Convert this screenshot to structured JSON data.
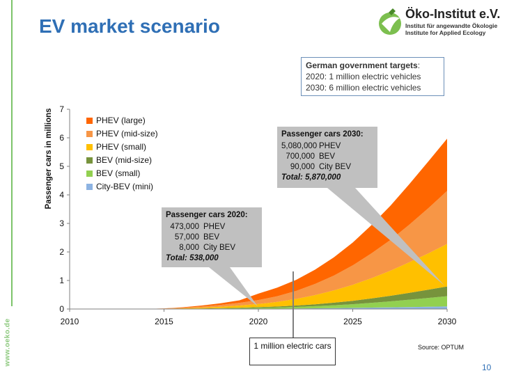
{
  "slide": {
    "title": "EV market scenario",
    "side_url": "www.oeko.de",
    "page_number": "10",
    "source": "Source: OPTUM",
    "logo": {
      "name": "Öko-Institut e.V.",
      "sub_de": "Institut für angewandte Ökologie",
      "sub_en": "Institute for Applied Ecology"
    },
    "targets": {
      "heading": "German government targets",
      "heading_suffix": ":",
      "line1": "2020: 1 million electric vehicles",
      "line2": "2030: 6 million electric vehicles"
    },
    "callout_2030": {
      "title": "Passenger cars 2030:",
      "rows": [
        {
          "num": "5,080,000",
          "label": "PHEV"
        },
        {
          "num": "700,000",
          "label": "BEV"
        },
        {
          "num": "90,000",
          "label": "City BEV"
        }
      ],
      "total": "Total: 5,870,000"
    },
    "callout_2020": {
      "title": "Passenger cars 2020:",
      "rows": [
        {
          "num": "473,000",
          "label": "PHEV"
        },
        {
          "num": "57,000",
          "label": "BEV"
        },
        {
          "num": "8,000",
          "label": "City BEV"
        }
      ],
      "total": "Total: 538,000"
    },
    "million_box": "1 million electric cars"
  },
  "chart_data": {
    "type": "area",
    "stacked": true,
    "ylabel": "Passenger cars in millions",
    "xlabel": "",
    "xlim": [
      2010,
      2030
    ],
    "ylim": [
      0,
      7
    ],
    "x_ticks": [
      2010,
      2015,
      2020,
      2025,
      2030
    ],
    "y_ticks": [
      0,
      1,
      2,
      3,
      4,
      5,
      6,
      7
    ],
    "grid": false,
    "legend_position": "top-left",
    "x": [
      2014,
      2015,
      2016,
      2017,
      2018,
      2019,
      2020,
      2021,
      2022,
      2023,
      2024,
      2025,
      2026,
      2027,
      2028,
      2029,
      2030
    ],
    "series": [
      {
        "name": "City-BEV (mini)",
        "color": "#8db3e2",
        "values": [
          0,
          0,
          0,
          0,
          0.001,
          0.004,
          0.008,
          0.012,
          0.018,
          0.024,
          0.031,
          0.039,
          0.048,
          0.058,
          0.068,
          0.079,
          0.09
        ]
      },
      {
        "name": "BEV (small)",
        "color": "#92d050",
        "values": [
          0,
          0.002,
          0.005,
          0.01,
          0.016,
          0.022,
          0.03,
          0.04,
          0.055,
          0.075,
          0.1,
          0.13,
          0.17,
          0.21,
          0.26,
          0.31,
          0.36
        ]
      },
      {
        "name": "BEV (mid-size)",
        "color": "#77933c",
        "values": [
          0,
          0.002,
          0.004,
          0.008,
          0.013,
          0.02,
          0.027,
          0.037,
          0.05,
          0.068,
          0.09,
          0.12,
          0.155,
          0.195,
          0.24,
          0.29,
          0.34
        ]
      },
      {
        "name": "PHEV (small)",
        "color": "#ffc000",
        "values": [
          0,
          0.005,
          0.015,
          0.03,
          0.05,
          0.075,
          0.11,
          0.16,
          0.23,
          0.32,
          0.43,
          0.56,
          0.71,
          0.88,
          1.07,
          1.27,
          1.49
        ]
      },
      {
        "name": "PHEV (mid-size)",
        "color": "#f79646",
        "values": [
          0,
          0.007,
          0.02,
          0.04,
          0.065,
          0.095,
          0.14,
          0.2,
          0.28,
          0.39,
          0.52,
          0.68,
          0.87,
          1.08,
          1.32,
          1.58,
          1.86
        ]
      },
      {
        "name": "PHEV (large)",
        "color": "#ff6600",
        "values": [
          0,
          0.006,
          0.017,
          0.034,
          0.055,
          0.09,
          0.223,
          0.3,
          0.39,
          0.5,
          0.64,
          0.8,
          0.99,
          1.2,
          1.42,
          1.64,
          1.83
        ]
      }
    ]
  }
}
